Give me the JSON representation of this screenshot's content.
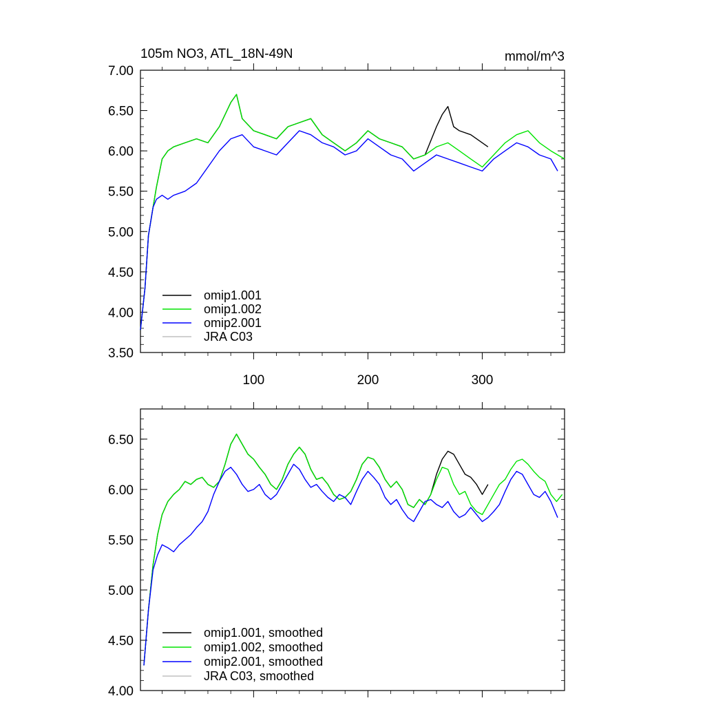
{
  "figure": {
    "title_left": "105m NO3, ATL_18N-49N",
    "title_right": "mmol/m^3"
  },
  "chart_data": [
    {
      "type": "line",
      "xlim": [
        1,
        372
      ],
      "ylim": [
        3.5,
        7.0
      ],
      "x_tick_labels": [
        "100",
        "200",
        "300"
      ],
      "x_ticks": [
        100,
        200,
        300
      ],
      "y_tick_labels": [
        "3.50",
        "4.00",
        "4.50",
        "5.00",
        "5.50",
        "6.00",
        "6.50",
        "7.00"
      ],
      "y_ticks": [
        3.5,
        4.0,
        4.5,
        5.0,
        5.5,
        6.0,
        6.5,
        7.0
      ],
      "grid": false,
      "legend_position": "bottom-left",
      "series": [
        {
          "name": "omip1.001",
          "color": "#000000",
          "x": [
            1,
            5,
            8,
            12,
            15,
            20,
            25,
            30,
            40,
            50,
            60,
            70,
            80,
            85,
            90,
            100,
            110,
            120,
            130,
            140,
            150,
            160,
            170,
            180,
            190,
            200,
            210,
            220,
            230,
            240,
            250,
            260,
            265,
            270,
            275,
            280,
            290,
            300,
            305
          ],
          "y": [
            3.78,
            4.3,
            4.95,
            5.3,
            5.55,
            5.9,
            6.0,
            6.05,
            6.1,
            6.15,
            6.1,
            6.3,
            6.6,
            6.7,
            6.4,
            6.25,
            6.2,
            6.15,
            6.3,
            6.35,
            6.4,
            6.2,
            6.1,
            6.0,
            6.1,
            6.25,
            6.15,
            6.1,
            6.05,
            5.9,
            5.95,
            6.3,
            6.45,
            6.55,
            6.3,
            6.25,
            6.2,
            6.1,
            6.05
          ]
        },
        {
          "name": "omip1.002",
          "color": "#00e400",
          "x": [
            1,
            5,
            8,
            12,
            15,
            20,
            25,
            30,
            40,
            50,
            60,
            70,
            80,
            85,
            90,
            100,
            110,
            120,
            130,
            140,
            150,
            160,
            170,
            180,
            190,
            200,
            210,
            220,
            230,
            240,
            250,
            260,
            270,
            280,
            290,
            300,
            310,
            320,
            330,
            340,
            350,
            360,
            372
          ],
          "y": [
            3.78,
            4.3,
            4.95,
            5.3,
            5.55,
            5.9,
            6.0,
            6.05,
            6.1,
            6.15,
            6.1,
            6.3,
            6.6,
            6.7,
            6.4,
            6.25,
            6.2,
            6.15,
            6.3,
            6.35,
            6.4,
            6.2,
            6.1,
            6.0,
            6.1,
            6.25,
            6.15,
            6.1,
            6.05,
            5.9,
            5.95,
            6.05,
            6.1,
            6.0,
            5.9,
            5.8,
            5.95,
            6.1,
            6.2,
            6.25,
            6.1,
            6.0,
            5.9
          ]
        },
        {
          "name": "omip2.001",
          "color": "#0000ff",
          "x": [
            1,
            5,
            8,
            12,
            15,
            20,
            25,
            30,
            40,
            50,
            60,
            70,
            80,
            90,
            100,
            110,
            120,
            130,
            140,
            150,
            160,
            170,
            180,
            190,
            200,
            210,
            220,
            230,
            240,
            250,
            260,
            270,
            280,
            290,
            300,
            310,
            320,
            330,
            340,
            350,
            360,
            366
          ],
          "y": [
            3.78,
            4.3,
            4.95,
            5.3,
            5.4,
            5.45,
            5.4,
            5.45,
            5.5,
            5.6,
            5.8,
            6.0,
            6.15,
            6.2,
            6.05,
            6.0,
            5.95,
            6.1,
            6.25,
            6.2,
            6.1,
            6.05,
            5.95,
            6.0,
            6.15,
            6.05,
            5.95,
            5.9,
            5.75,
            5.85,
            5.95,
            5.9,
            5.85,
            5.8,
            5.75,
            5.9,
            6.0,
            6.1,
            6.05,
            5.95,
            5.9,
            5.75
          ]
        },
        {
          "name": "JRA C03",
          "color": "#c0c0c0",
          "x": [],
          "y": []
        }
      ]
    },
    {
      "type": "line",
      "xlim": [
        1,
        372
      ],
      "ylim": [
        4.0,
        6.8
      ],
      "x_ticks": [
        100,
        200,
        300
      ],
      "y_tick_labels": [
        "4.00",
        "4.50",
        "5.00",
        "5.50",
        "6.00",
        "6.50"
      ],
      "y_ticks": [
        4.0,
        4.5,
        5.0,
        5.5,
        6.0,
        6.5
      ],
      "grid": false,
      "legend_position": "bottom-left",
      "series": [
        {
          "name": "omip1.001, smoothed",
          "color": "#000000",
          "x": [
            4,
            8,
            12,
            16,
            20,
            25,
            30,
            35,
            40,
            45,
            50,
            55,
            60,
            65,
            70,
            75,
            80,
            85,
            90,
            95,
            100,
            105,
            110,
            115,
            120,
            125,
            130,
            135,
            140,
            145,
            150,
            155,
            160,
            165,
            170,
            175,
            180,
            185,
            190,
            195,
            200,
            205,
            210,
            215,
            220,
            225,
            230,
            235,
            240,
            245,
            250,
            255,
            260,
            265,
            270,
            275,
            280,
            285,
            290,
            295,
            300,
            305
          ],
          "y": [
            4.25,
            4.8,
            5.25,
            5.55,
            5.75,
            5.88,
            5.95,
            6.0,
            6.08,
            6.05,
            6.1,
            6.12,
            6.05,
            6.02,
            6.08,
            6.25,
            6.45,
            6.55,
            6.45,
            6.35,
            6.3,
            6.22,
            6.15,
            6.05,
            6.0,
            6.1,
            6.25,
            6.35,
            6.42,
            6.35,
            6.2,
            6.1,
            6.12,
            6.05,
            5.95,
            5.9,
            5.92,
            5.98,
            6.1,
            6.25,
            6.32,
            6.3,
            6.22,
            6.1,
            6.02,
            6.08,
            6.0,
            5.85,
            5.82,
            5.9,
            5.85,
            5.95,
            6.15,
            6.3,
            6.38,
            6.35,
            6.25,
            6.15,
            6.12,
            6.05,
            5.95,
            6.05
          ]
        },
        {
          "name": "omip1.002, smoothed",
          "color": "#00e400",
          "x": [
            4,
            8,
            12,
            16,
            20,
            25,
            30,
            35,
            40,
            45,
            50,
            55,
            60,
            65,
            70,
            75,
            80,
            85,
            90,
            95,
            100,
            105,
            110,
            115,
            120,
            125,
            130,
            135,
            140,
            145,
            150,
            155,
            160,
            165,
            170,
            175,
            180,
            185,
            190,
            195,
            200,
            205,
            210,
            215,
            220,
            225,
            230,
            235,
            240,
            245,
            250,
            255,
            260,
            265,
            270,
            275,
            280,
            285,
            290,
            295,
            300,
            305,
            310,
            315,
            320,
            325,
            330,
            335,
            340,
            345,
            350,
            355,
            360,
            365,
            370
          ],
          "y": [
            4.25,
            4.8,
            5.25,
            5.55,
            5.75,
            5.88,
            5.95,
            6.0,
            6.08,
            6.05,
            6.1,
            6.12,
            6.05,
            6.02,
            6.08,
            6.25,
            6.45,
            6.55,
            6.45,
            6.35,
            6.3,
            6.22,
            6.15,
            6.05,
            6.0,
            6.1,
            6.25,
            6.35,
            6.42,
            6.35,
            6.2,
            6.1,
            6.12,
            6.05,
            5.95,
            5.9,
            5.92,
            5.98,
            6.1,
            6.25,
            6.32,
            6.3,
            6.22,
            6.1,
            6.02,
            6.08,
            6.0,
            5.85,
            5.82,
            5.9,
            5.85,
            5.95,
            6.1,
            6.22,
            6.2,
            6.05,
            5.95,
            5.98,
            5.85,
            5.78,
            5.75,
            5.85,
            5.95,
            6.05,
            6.1,
            6.2,
            6.28,
            6.3,
            6.25,
            6.18,
            6.12,
            6.08,
            5.95,
            5.88,
            5.95
          ]
        },
        {
          "name": "omip2.001, smoothed",
          "color": "#0000ff",
          "x": [
            4,
            8,
            12,
            16,
            20,
            25,
            30,
            35,
            40,
            45,
            50,
            55,
            60,
            65,
            70,
            75,
            80,
            85,
            90,
            95,
            100,
            105,
            110,
            115,
            120,
            125,
            130,
            135,
            140,
            145,
            150,
            155,
            160,
            165,
            170,
            175,
            180,
            185,
            190,
            195,
            200,
            205,
            210,
            215,
            220,
            225,
            230,
            235,
            240,
            245,
            250,
            255,
            260,
            265,
            270,
            275,
            280,
            285,
            290,
            295,
            300,
            305,
            310,
            315,
            320,
            325,
            330,
            335,
            340,
            345,
            350,
            355,
            360,
            366
          ],
          "y": [
            4.25,
            4.8,
            5.2,
            5.35,
            5.45,
            5.42,
            5.38,
            5.45,
            5.5,
            5.55,
            5.62,
            5.68,
            5.78,
            5.95,
            6.08,
            6.18,
            6.22,
            6.15,
            6.05,
            5.98,
            6.0,
            6.05,
            5.95,
            5.9,
            5.95,
            6.05,
            6.15,
            6.25,
            6.2,
            6.1,
            6.02,
            6.05,
            5.98,
            5.92,
            5.88,
            5.95,
            5.92,
            5.85,
            5.98,
            6.1,
            6.18,
            6.12,
            6.05,
            5.92,
            5.85,
            5.9,
            5.8,
            5.72,
            5.68,
            5.78,
            5.88,
            5.9,
            5.85,
            5.82,
            5.88,
            5.78,
            5.72,
            5.75,
            5.82,
            5.75,
            5.68,
            5.72,
            5.78,
            5.85,
            5.98,
            6.1,
            6.18,
            6.15,
            6.05,
            5.95,
            5.92,
            5.98,
            5.88,
            5.72
          ]
        },
        {
          "name": "JRA C03, smoothed",
          "color": "#c0c0c0",
          "x": [],
          "y": []
        }
      ]
    }
  ]
}
